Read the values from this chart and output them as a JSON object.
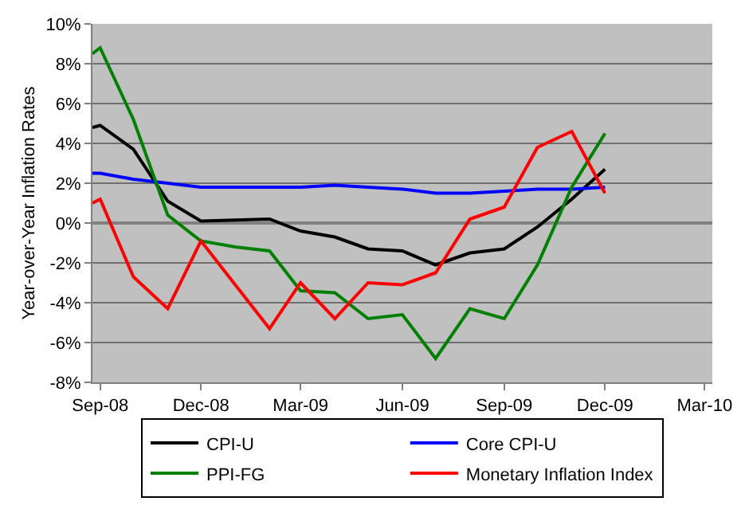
{
  "chart_data": {
    "type": "line",
    "ylabel": "Year-over-Year Inflation Rates",
    "x": [
      "2008-08-25",
      "2008-09-01",
      "2008-10-01",
      "2008-11-01",
      "2008-12-01",
      "2009-01-01",
      "2009-02-01",
      "2009-03-01",
      "2009-04-01",
      "2009-05-01",
      "2009-06-01",
      "2009-07-01",
      "2009-08-01",
      "2009-09-01",
      "2009-10-01",
      "2009-11-01",
      "2009-12-01"
    ],
    "series": [
      {
        "name": "CPI-U",
        "color": "#000000",
        "values": [
          4.8,
          4.9,
          3.7,
          1.1,
          0.1,
          0.15,
          0.2,
          -0.4,
          -0.7,
          -1.3,
          -1.4,
          -2.1,
          -1.5,
          -1.3,
          -0.2,
          1.2,
          2.7
        ]
      },
      {
        "name": "Core CPI-U",
        "color": "#0000ff",
        "values": [
          2.5,
          2.5,
          2.2,
          2.0,
          1.8,
          1.8,
          1.8,
          1.8,
          1.9,
          1.8,
          1.7,
          1.5,
          1.5,
          1.6,
          1.7,
          1.7,
          1.8
        ]
      },
      {
        "name": "PPI-FG",
        "color": "#008000",
        "values": [
          8.5,
          8.8,
          5.2,
          0.4,
          -0.9,
          -1.2,
          -1.4,
          -3.4,
          -3.5,
          -4.8,
          -4.6,
          -6.8,
          -4.3,
          -4.8,
          -2.1,
          1.8,
          4.5
        ]
      },
      {
        "name": "Monetary Inflation Index",
        "color": "#ff0000",
        "values": [
          1.0,
          1.2,
          -2.7,
          -4.3,
          -0.9,
          -3.1,
          -5.3,
          -3.0,
          -4.8,
          -3.0,
          -3.1,
          -2.5,
          0.2,
          0.8,
          3.8,
          4.6,
          1.5
        ]
      }
    ],
    "xlim": [
      "2008-08-25",
      "2010-03-08"
    ],
    "xticks": [
      {
        "value": "2008-09-01",
        "label": "Sep-08"
      },
      {
        "value": "2008-12-01",
        "label": "Dec-08"
      },
      {
        "value": "2009-03-01",
        "label": "Mar-09"
      },
      {
        "value": "2009-06-01",
        "label": "Jun-09"
      },
      {
        "value": "2009-09-01",
        "label": "Sep-09"
      },
      {
        "value": "2009-12-01",
        "label": "Dec-09"
      },
      {
        "value": "2010-03-01",
        "label": "Mar-10"
      }
    ],
    "ylim": [
      -8,
      10
    ],
    "yticks": [
      {
        "value": -8,
        "label": "-8%"
      },
      {
        "value": -6,
        "label": "-6%"
      },
      {
        "value": -4,
        "label": "-4%"
      },
      {
        "value": -2,
        "label": "-2%"
      },
      {
        "value": 0,
        "label": "0%"
      },
      {
        "value": 2,
        "label": "2%"
      },
      {
        "value": 4,
        "label": "4%"
      },
      {
        "value": 6,
        "label": "6%"
      },
      {
        "value": 8,
        "label": "8%"
      },
      {
        "value": 10,
        "label": "10%"
      }
    ],
    "grid": "y",
    "legend": "bottom",
    "marker": "none",
    "line_style": "solid"
  }
}
